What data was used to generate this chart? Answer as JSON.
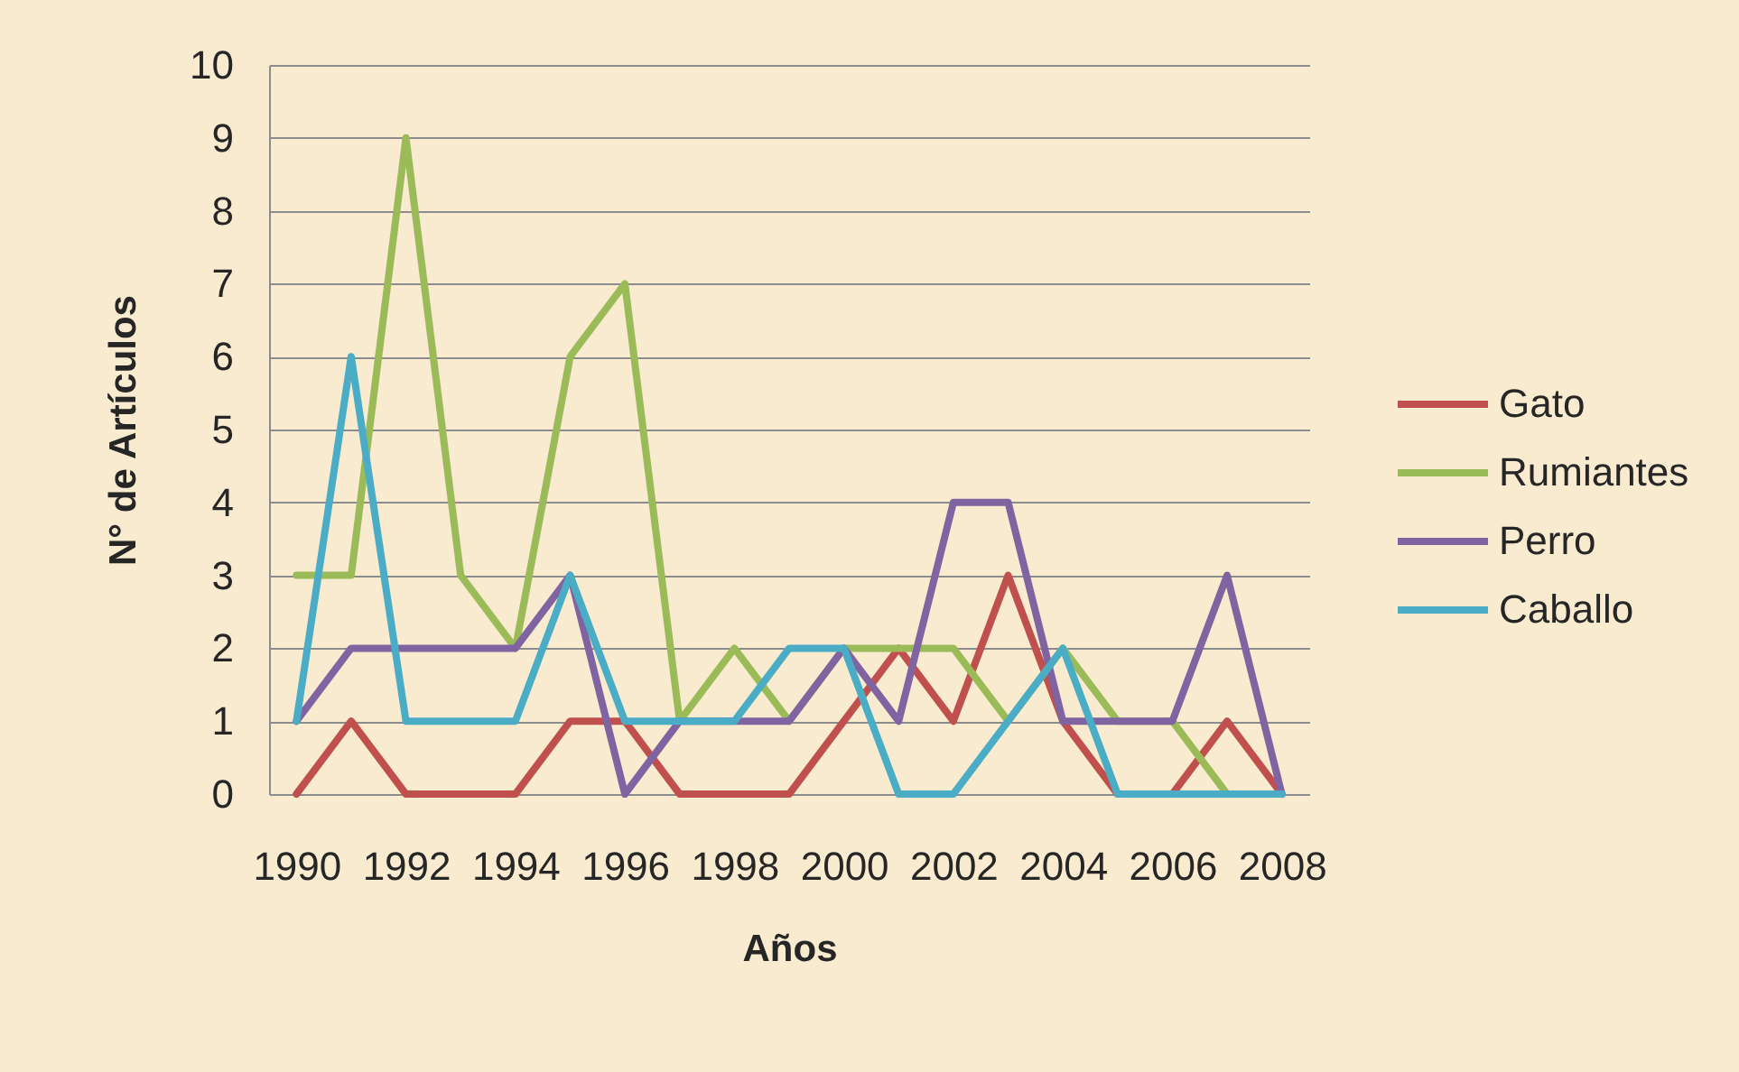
{
  "chart_data": {
    "type": "line",
    "xlabel": "Años",
    "ylabel": "N° de Artículos",
    "x": [
      1990,
      1991,
      1992,
      1993,
      1994,
      1995,
      1996,
      1997,
      1998,
      1999,
      2000,
      2001,
      2002,
      2003,
      2004,
      2005,
      2006,
      2007,
      2008
    ],
    "xlim": [
      1989.5,
      2008.5
    ],
    "xticks": [
      1990,
      1992,
      1994,
      1996,
      1998,
      2000,
      2002,
      2004,
      2006,
      2008
    ],
    "ylim": [
      0,
      10
    ],
    "yticks": [
      0,
      1,
      2,
      3,
      4,
      5,
      6,
      7,
      8,
      9,
      10
    ],
    "grid": "y",
    "legend": "right",
    "line_style": "solid",
    "series": [
      {
        "name": "Gato",
        "color": "#c0504d",
        "values": [
          0,
          1,
          0,
          0,
          0,
          1,
          1,
          0,
          0,
          0,
          1,
          2,
          1,
          3,
          1,
          0,
          0,
          1,
          0
        ]
      },
      {
        "name": "Rumiantes",
        "color": "#9bbb59",
        "values": [
          3,
          3,
          9,
          3,
          2,
          6,
          7,
          1,
          2,
          1,
          2,
          2,
          2,
          1,
          2,
          1,
          1,
          0,
          0
        ]
      },
      {
        "name": "Perro",
        "color": "#8064a2",
        "values": [
          1,
          2,
          2,
          2,
          2,
          3,
          0,
          1,
          1,
          1,
          2,
          1,
          4,
          4,
          1,
          1,
          1,
          3,
          0
        ]
      },
      {
        "name": "Caballo",
        "color": "#4bacc6",
        "values": [
          1,
          6,
          1,
          1,
          1,
          3,
          1,
          1,
          1,
          2,
          2,
          0,
          0,
          1,
          2,
          0,
          0,
          0,
          0
        ]
      }
    ]
  }
}
